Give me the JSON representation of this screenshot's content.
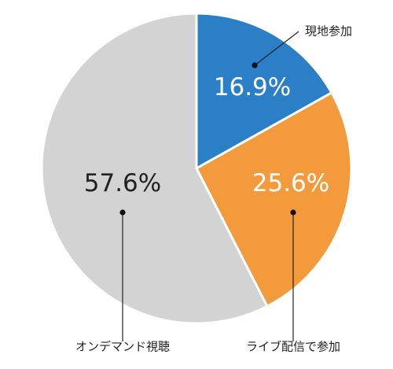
{
  "chart_data": {
    "type": "pie",
    "slices": [
      {
        "label": "現地参加",
        "value": 16.9,
        "value_label": "16.9%",
        "color": "#2a7fc6",
        "value_color": "#ffffff"
      },
      {
        "label": "ライブ配信で参加",
        "value": 25.6,
        "value_label": "25.6%",
        "color": "#f29a3c",
        "value_color": "#ffffff"
      },
      {
        "label": "オンデマンド視聴",
        "value": 57.6,
        "value_label": "57.6%",
        "color": "#d3d3d3",
        "value_color": "#222222"
      }
    ],
    "start_angle": "12 o'clock",
    "direction": "clockwise",
    "legend": "none"
  }
}
